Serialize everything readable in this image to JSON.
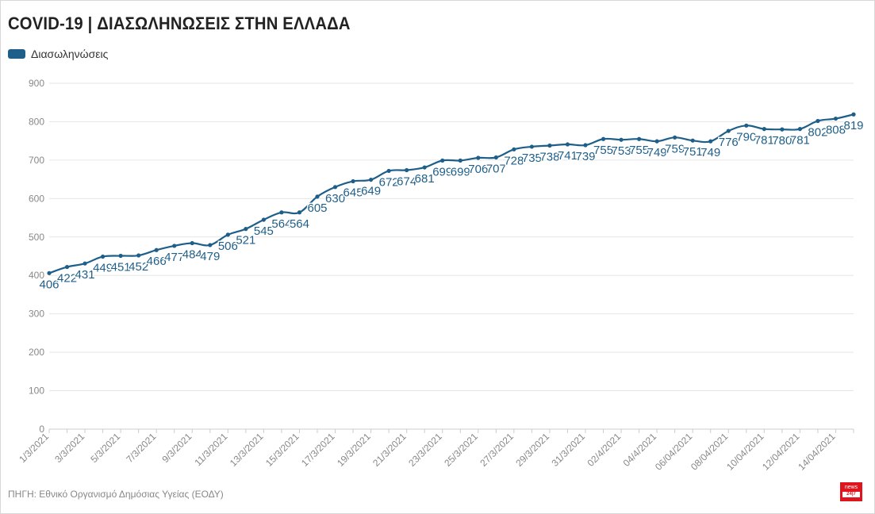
{
  "title": "COVID-19 | ΔΙΑΣΩΛΗΝΩΣΕΙΣ ΣΤΗΝ ΕΛΛΑΔΑ",
  "source": "ΠΗΓΗ: Εθνικό Οργανισμό Δημόσιας Υγείας (ΕΟΔΥ)",
  "logo": {
    "line1": "news",
    "line2": "24|7"
  },
  "colors": {
    "series": "#1e5f8a",
    "grid": "#e6e6e6",
    "axis_text": "#888888"
  },
  "chart_data": {
    "type": "line",
    "title": "COVID-19 | ΔΙΑΣΩΛΗΝΩΣΕΙΣ ΣΤΗΝ ΕΛΛΑΔΑ",
    "xlabel": "",
    "ylabel": "",
    "ylim": [
      0,
      900
    ],
    "yticks": [
      0,
      100,
      200,
      300,
      400,
      500,
      600,
      700,
      800,
      900
    ],
    "grid": true,
    "legend_position": "top-left",
    "categories": [
      "1/3/2021",
      "2/3/2021",
      "3/3/2021",
      "4/3/2021",
      "5/3/2021",
      "6/3/2021",
      "7/3/2021",
      "8/3/2021",
      "9/3/2021",
      "10/3/2021",
      "11/3/2021",
      "12/3/2021",
      "13/3/2021",
      "14/3/2021",
      "15/3/2021",
      "16/3/2021",
      "17/3/2021",
      "18/3/2021",
      "19/3/2021",
      "20/3/2021",
      "21/3/2021",
      "22/3/2021",
      "23/3/2021",
      "24/3/2021",
      "25/3/2021",
      "26/3/2021",
      "27/3/2021",
      "28/3/2021",
      "29/3/2021",
      "30/3/2021",
      "31/3/2021",
      "01/4/2021",
      "02/4/2021",
      "03/4/2021",
      "04/4/2021",
      "05/04/2021",
      "06/04/2021",
      "07/04/2021",
      "08/04/2021",
      "09/04/2021",
      "10/04/2021",
      "11/04/2021",
      "12/04/2021",
      "13/04/2021",
      "14/04/2021",
      "15/04/2021"
    ],
    "tick_labels": [
      "1/3/2021",
      "",
      "3/3/2021",
      "",
      "5/3/2021",
      "",
      "7/3/2021",
      "",
      "9/3/2021",
      "",
      "11/3/2021",
      "",
      "13/3/2021",
      "",
      "15/3/2021",
      "",
      "17/3/2021",
      "",
      "19/3/2021",
      "",
      "21/3/2021",
      "",
      "23/3/2021",
      "",
      "25/3/2021",
      "",
      "27/3/2021",
      "",
      "29/3/2021",
      "",
      "31/3/2021",
      "",
      "02/4/2021",
      "",
      "04/4/2021",
      "",
      "06/04/2021",
      "",
      "08/04/2021",
      "",
      "10/04/2021",
      "",
      "12/04/2021",
      "",
      "14/04/2021",
      ""
    ],
    "series": [
      {
        "name": "Διασωληνώσεις",
        "values": [
          406,
          422,
          431,
          449,
          451,
          452,
          466,
          477,
          484,
          479,
          506,
          521,
          545,
          564,
          564,
          605,
          630,
          645,
          649,
          672,
          674,
          681,
          699,
          699,
          706,
          707,
          728,
          735,
          738,
          741,
          739,
          755,
          753,
          755,
          749,
          759,
          751,
          749,
          776,
          790,
          781,
          780,
          781,
          802,
          808,
          819
        ],
        "labels": [
          "406",
          "422",
          "431",
          "449",
          "451",
          "452",
          "466",
          "477",
          "484",
          "479",
          "506",
          "521",
          "545",
          "564",
          "564",
          "605",
          "630",
          "645",
          "649",
          "672",
          "674",
          "681",
          "699",
          "699",
          "706",
          "707",
          "728",
          "735",
          "738",
          "741",
          "739",
          "755",
          "753",
          "755",
          "749",
          "759",
          "751",
          "749",
          "776",
          "790",
          "781",
          "780",
          "781",
          "802",
          "808",
          "819"
        ]
      }
    ]
  }
}
